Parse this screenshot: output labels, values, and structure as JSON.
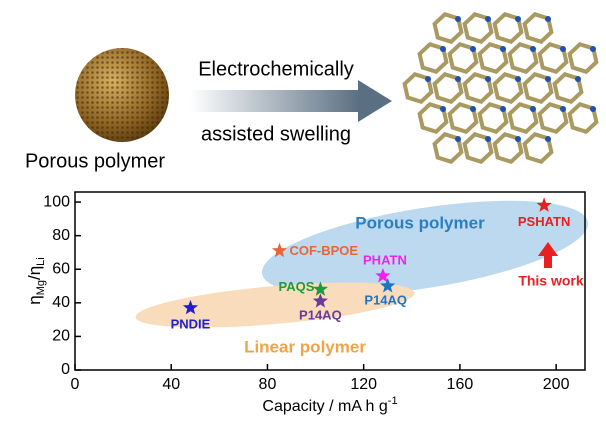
{
  "scheme": {
    "arrow_top": "Electrochemically",
    "arrow_bottom": "assisted swelling",
    "left_label": "Porous polymer"
  },
  "chart_data": {
    "type": "scatter",
    "xlabel": [
      "Capacity / mA h g",
      "-1"
    ],
    "ylabel": [
      "η",
      "Mg",
      "/η",
      "Li"
    ],
    "x": [
      48,
      102,
      102,
      85,
      128,
      130,
      195
    ],
    "values": [
      37,
      48,
      41,
      71,
      56,
      50,
      98
    ],
    "point_labels": [
      "PNDIE",
      "PAQS",
      "P14AQ",
      "COF-BPOE",
      "PHATN",
      "P14AQ",
      "PSHATN"
    ],
    "colors": [
      "#1f1fd0",
      "#1f9a3c",
      "#6a3a9a",
      "#e8653a",
      "#ee22ee",
      "#1f74c4",
      "#e82020"
    ],
    "annotations": [
      {
        "text": "Porous polymer",
        "color": "#2a7fc0"
      },
      {
        "text": "Linear polymer",
        "color": "#f0a448"
      },
      {
        "text": "This work",
        "color": "#e82020"
      }
    ],
    "xlim": [
      0,
      212
    ],
    "ylim": [
      0,
      106
    ],
    "xticks": [
      0,
      40,
      80,
      120,
      160,
      200
    ],
    "yticks": [
      0,
      20,
      40,
      60,
      80,
      100
    ]
  }
}
